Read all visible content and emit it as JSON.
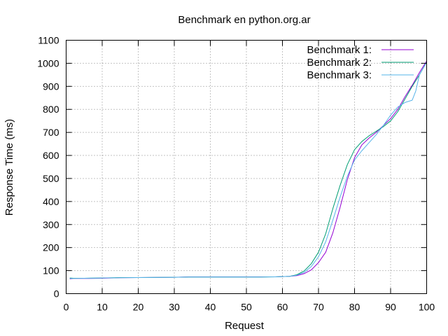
{
  "chart_data": {
    "type": "line",
    "title": "Benchmark en python.org.ar",
    "xlabel": "Request",
    "ylabel": "Response Time (ms)",
    "xlim": [
      0,
      100
    ],
    "ylim": [
      0,
      1100
    ],
    "xticks": [
      0,
      10,
      20,
      30,
      40,
      50,
      60,
      70,
      80,
      90,
      100
    ],
    "yticks": [
      0,
      100,
      200,
      300,
      400,
      500,
      600,
      700,
      800,
      900,
      1000,
      1100
    ],
    "grid": true,
    "legend_position": "top-right",
    "series": [
      {
        "name": "Benchmark 1:",
        "color": "#9400d3",
        "x": [
          1,
          2,
          5,
          10,
          15,
          20,
          30,
          34,
          40,
          50,
          54,
          58,
          62,
          64,
          66,
          68,
          70,
          72,
          74,
          76,
          78,
          80,
          82,
          84,
          86,
          88,
          90,
          92,
          94,
          96,
          98,
          100
        ],
        "y": [
          64,
          66,
          66,
          67,
          69,
          70,
          71,
          73,
          73,
          73,
          73,
          73,
          75,
          78,
          87,
          103,
          135,
          180,
          265,
          375,
          495,
          590,
          645,
          675,
          700,
          730,
          760,
          800,
          855,
          905,
          960,
          1010
        ]
      },
      {
        "name": "Benchmark 2:",
        "color": "#009e73",
        "x": [
          1,
          2,
          5,
          10,
          15,
          20,
          30,
          34,
          40,
          50,
          54,
          58,
          62,
          64,
          66,
          68,
          70,
          72,
          74,
          76,
          78,
          80,
          82,
          84,
          86,
          88,
          90,
          92,
          94,
          96,
          98,
          100
        ],
        "y": [
          68,
          67,
          67,
          68,
          70,
          70,
          71,
          72,
          72,
          72,
          72,
          73,
          75,
          82,
          98,
          130,
          180,
          260,
          370,
          470,
          560,
          625,
          660,
          685,
          705,
          725,
          750,
          790,
          845,
          900,
          950,
          1005
        ]
      },
      {
        "name": "Benchmark 3:",
        "color": "#56b4e9",
        "x": [
          1,
          2,
          5,
          10,
          15,
          20,
          30,
          34,
          40,
          50,
          54,
          58,
          62,
          64,
          66,
          68,
          70,
          72,
          74,
          76,
          78,
          80,
          82,
          84,
          86,
          88,
          90,
          92,
          94,
          96,
          97,
          98,
          100
        ],
        "y": [
          66,
          66,
          67,
          68,
          69,
          70,
          71,
          72,
          72,
          72,
          72,
          73,
          75,
          80,
          92,
          118,
          160,
          225,
          320,
          420,
          510,
          580,
          620,
          655,
          690,
          730,
          775,
          810,
          830,
          840,
          880,
          950,
          1005
        ]
      }
    ]
  }
}
